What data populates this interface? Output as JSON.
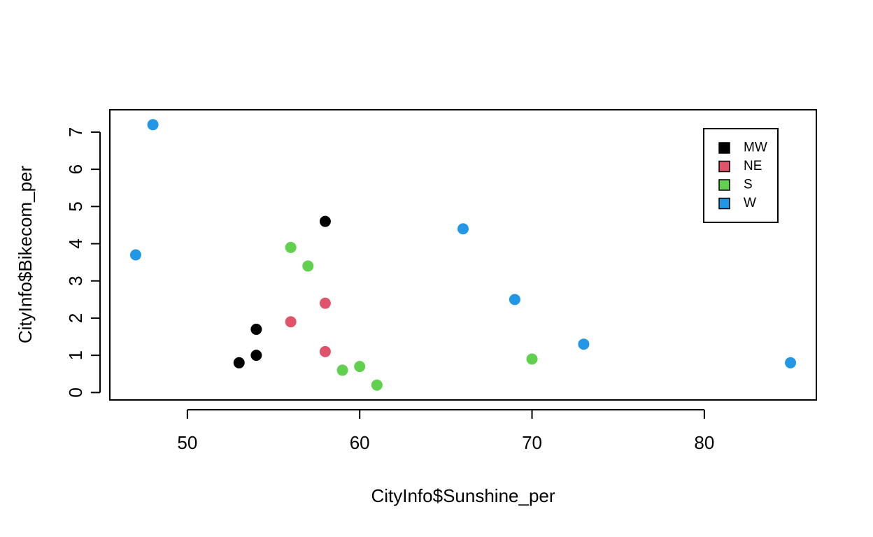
{
  "chart_data": {
    "type": "scatter",
    "title": "",
    "xlabel": "CityInfo$Sunshine_per",
    "ylabel": "CityInfo$Bikecom_per",
    "xlim": [
      45.5,
      86.5
    ],
    "ylim": [
      -0.2,
      7.6
    ],
    "x_ticks": [
      50,
      60,
      70,
      80
    ],
    "y_ticks": [
      0,
      1,
      2,
      3,
      4,
      5,
      6,
      7
    ],
    "grid": false,
    "legend_position": "top-right",
    "series": [
      {
        "name": "MW",
        "color": "#000000",
        "points": [
          {
            "x": 58,
            "y": 4.6
          },
          {
            "x": 54,
            "y": 1.7
          },
          {
            "x": 54,
            "y": 1.0
          },
          {
            "x": 53,
            "y": 0.8
          }
        ]
      },
      {
        "name": "NE",
        "color": "#DF536B",
        "points": [
          {
            "x": 58,
            "y": 2.4
          },
          {
            "x": 56,
            "y": 1.9
          },
          {
            "x": 58,
            "y": 1.1
          }
        ]
      },
      {
        "name": "S",
        "color": "#61D04F",
        "points": [
          {
            "x": 56,
            "y": 3.9
          },
          {
            "x": 57,
            "y": 3.4
          },
          {
            "x": 59,
            "y": 0.6
          },
          {
            "x": 60,
            "y": 0.7
          },
          {
            "x": 61,
            "y": 0.2
          },
          {
            "x": 70,
            "y": 0.9
          }
        ]
      },
      {
        "name": "W",
        "color": "#2297E6",
        "points": [
          {
            "x": 48,
            "y": 7.2
          },
          {
            "x": 47,
            "y": 3.7
          },
          {
            "x": 66,
            "y": 4.4
          },
          {
            "x": 69,
            "y": 2.5
          },
          {
            "x": 73,
            "y": 1.3
          },
          {
            "x": 85,
            "y": 0.8
          }
        ]
      }
    ]
  }
}
